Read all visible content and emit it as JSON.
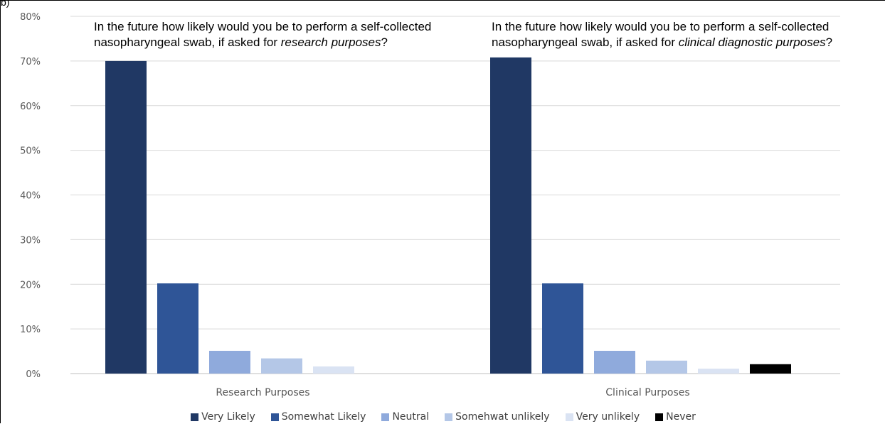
{
  "chart_data": {
    "type": "bar",
    "categories": [
      "Research Purposes",
      "Clinical Purposes"
    ],
    "series": [
      {
        "name": "Very Likely",
        "color": "#203864",
        "values": [
          70,
          70.8
        ]
      },
      {
        "name": "Somewhat Likely",
        "color": "#2F5597",
        "values": [
          20.2,
          20.2
        ]
      },
      {
        "name": "Neutral",
        "color": "#8FAADC",
        "values": [
          5.1,
          5.1
        ]
      },
      {
        "name": "Somehwat unlikely",
        "color": "#B4C7E7",
        "values": [
          3.4,
          2.9
        ]
      },
      {
        "name": "Very unlikely",
        "color": "#DAE3F3",
        "values": [
          1.6,
          1.1
        ]
      },
      {
        "name": "Never",
        "color": "#000000",
        "values": [
          0,
          2.1
        ]
      }
    ],
    "yticks": [
      "0%",
      "10%",
      "20%",
      "30%",
      "40%",
      "50%",
      "60%",
      "70%",
      "80%"
    ],
    "ylim": [
      0,
      80
    ],
    "grid": true,
    "legend_position": "bottom"
  },
  "questions": {
    "research": {
      "line1": "In the future how likely would you be to perform a self-collected",
      "line2_prefix": "nasopharyngeal swab, if asked for ",
      "line2_em": "research purposes",
      "line2_suffix": "?"
    },
    "clinical": {
      "line1": "In the future how likely would you be to perform a self-collected",
      "line2_prefix": "nasopharyngeal swab, if asked for ",
      "line2_em": "clinical diagnostic purposes",
      "line2_suffix": "?"
    }
  },
  "panel_label": "b)"
}
